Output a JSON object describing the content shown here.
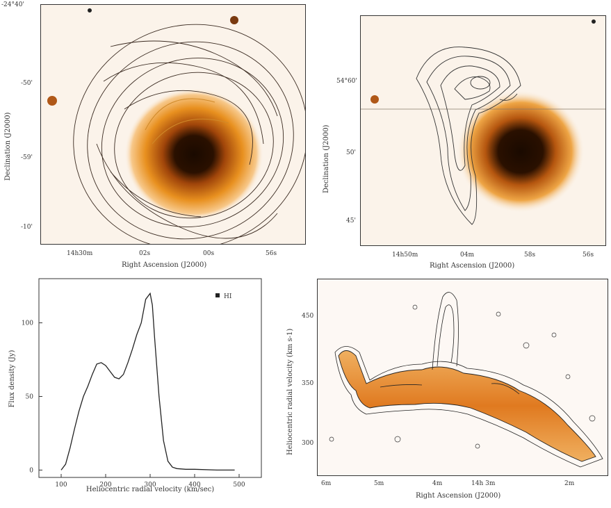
{
  "panels": {
    "top_left": {
      "y_ticks": [
        "-24°40'",
        "-50'",
        "-59'",
        "-10'"
      ],
      "x_ticks": [
        "14h30m",
        "02s",
        "00s",
        "56s"
      ],
      "xlabel": "Right Ascension (J2000)",
      "ylabel": "Declination (J2000)"
    },
    "top_right": {
      "y_ticks": [
        "54°60'",
        "50'",
        "45'"
      ],
      "x_ticks": [
        "14h50m",
        "04m",
        "58s",
        "56s"
      ],
      "xlabel": "Right Ascension (J2000)",
      "ylabel": "Declination (J2000)"
    },
    "bottom_left": {
      "legend": "HI",
      "xlabel": "Heliocentric radial velocity (km/sec)",
      "ylabel": "Flux density (Jy)"
    },
    "bottom_right": {
      "y_ticks": [
        "450",
        "350",
        "300"
      ],
      "x_ticks": [
        "6m",
        "5m",
        "4m",
        "14h 3m",
        "2m"
      ],
      "xlabel": "Right Ascension (J2000)",
      "ylabel": "Heliocentric radial velocity (km s-1)"
    }
  },
  "chart_data": {
    "type": "line",
    "title": "",
    "xlabel": "Heliocentric radial velocity (km/sec)",
    "ylabel": "Flux density (Jy)",
    "xlim": [
      50,
      550
    ],
    "ylim": [
      -5,
      130
    ],
    "x_ticks": [
      "100",
      "200",
      "300",
      "400",
      "500"
    ],
    "y_ticks": [
      "0",
      "50",
      "100"
    ],
    "legend": [
      "HI"
    ],
    "series": [
      {
        "name": "HI",
        "x": [
          100,
          110,
          120,
          130,
          140,
          150,
          160,
          170,
          180,
          190,
          200,
          210,
          220,
          230,
          240,
          250,
          260,
          270,
          280,
          290,
          300,
          305,
          310,
          320,
          330,
          340,
          350,
          360,
          380,
          400,
          450,
          490
        ],
        "y": [
          0,
          4,
          15,
          28,
          40,
          50,
          57,
          65,
          72,
          73,
          71,
          67,
          63,
          62,
          65,
          73,
          82,
          92,
          100,
          116,
          120,
          112,
          90,
          50,
          20,
          6,
          2,
          1,
          0.5,
          0.5,
          0,
          0
        ]
      }
    ]
  }
}
